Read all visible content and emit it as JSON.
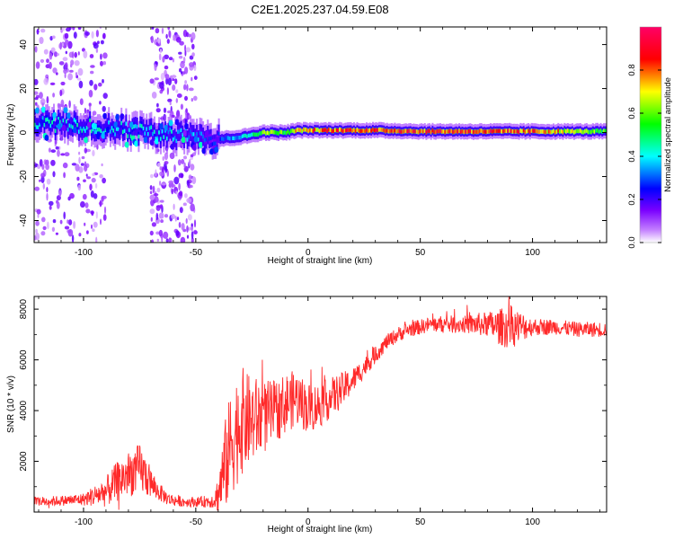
{
  "figure_title": "C2E1.2025.237.04.59.E08",
  "chart_data": [
    {
      "type": "heatmap",
      "name": "spectrogram",
      "xlabel": "Height of straight line (km)",
      "ylabel": "Frequency (Hz)",
      "xlim": [
        -122,
        133
      ],
      "ylim": [
        -50,
        48
      ],
      "x_ticks": [
        -100,
        -50,
        0,
        50,
        100
      ],
      "x_tick_labels": [
        "-100",
        "-50",
        "0",
        "50",
        "100"
      ],
      "y_ticks": [
        -40,
        -20,
        0,
        20,
        40
      ],
      "y_tick_labels": [
        "-40",
        "-20",
        "0",
        "20",
        "40"
      ],
      "colorbar": {
        "label": "Normalized spectral amplitude",
        "range": [
          0,
          1
        ],
        "ticks": [
          0.0,
          0.2,
          0.4,
          0.6,
          0.8
        ],
        "tick_labels": [
          "0.0",
          "0.2",
          "0.4",
          "0.6",
          "0.8"
        ],
        "colormap": [
          "#ffffff",
          "#8a00ff",
          "#0000ff",
          "#00ffff",
          "#00ff00",
          "#ffff00",
          "#ff0000",
          "#ff0066"
        ]
      },
      "ridge": {
        "x": [
          -122,
          -100,
          -80,
          -60,
          -50,
          -45,
          -40,
          -30,
          -20,
          -10,
          -5,
          0,
          10,
          30,
          50,
          80,
          100,
          133
        ],
        "center_hz": [
          4,
          3,
          1,
          -1,
          -1,
          -2,
          -3,
          -2,
          0,
          0,
          1,
          1,
          1,
          1,
          0.5,
          0.5,
          0.5,
          0.5
        ],
        "peak_amplitude": [
          0.45,
          0.45,
          0.45,
          0.42,
          0.38,
          0.33,
          0.33,
          0.4,
          0.7,
          0.65,
          0.8,
          0.85,
          0.9,
          0.95,
          0.95,
          0.95,
          0.9,
          0.6
        ]
      },
      "noisy_regions_km": [
        [
          -122,
          -90
        ],
        [
          -70,
          -50
        ]
      ]
    },
    {
      "type": "line",
      "name": "snr",
      "xlabel": "Height of straight line (km)",
      "ylabel": "SNR (10 * v/v)",
      "xlim": [
        -122,
        133
      ],
      "ylim": [
        0,
        8500
      ],
      "x_ticks": [
        -100,
        -50,
        0,
        50,
        100
      ],
      "x_tick_labels": [
        "-100",
        "-50",
        "0",
        "50",
        "100"
      ],
      "y_ticks": [
        2000,
        4000,
        6000,
        8000
      ],
      "y_tick_labels": [
        "2000",
        "4000",
        "6000",
        "8000"
      ],
      "color": "#ff2a2a",
      "x": [
        -122,
        -110,
        -100,
        -90,
        -85,
        -80,
        -75,
        -72,
        -68,
        -62,
        -55,
        -48,
        -42,
        -40,
        -37,
        -34,
        -30,
        -26,
        -22,
        -18,
        -14,
        -10,
        -5,
        0,
        5,
        10,
        15,
        20,
        25,
        30,
        35,
        40,
        45,
        50,
        55,
        60,
        65,
        70,
        75,
        80,
        85,
        90,
        95,
        100,
        110,
        120,
        133
      ],
      "y": [
        400,
        450,
        500,
        800,
        1200,
        1500,
        1700,
        1400,
        900,
        500,
        400,
        400,
        450,
        700,
        1800,
        2800,
        3600,
        3600,
        3700,
        3800,
        4000,
        4300,
        4500,
        4100,
        4200,
        4500,
        4800,
        5200,
        5700,
        6200,
        6700,
        7000,
        7200,
        7300,
        7400,
        7400,
        7400,
        7400,
        7400,
        7400,
        7300,
        7300,
        7300,
        7300,
        7300,
        7200,
        7200
      ],
      "noise_amplitude": [
        200,
        200,
        250,
        600,
        800,
        900,
        1000,
        800,
        400,
        250,
        200,
        200,
        300,
        800,
        1800,
        2200,
        2200,
        1800,
        1600,
        1400,
        1200,
        1200,
        1100,
        1000,
        900,
        800,
        700,
        500,
        400,
        350,
        300,
        300,
        300,
        300,
        300,
        350,
        350,
        350,
        450,
        500,
        700,
        900,
        600,
        350,
        300,
        300,
        300
      ]
    }
  ]
}
